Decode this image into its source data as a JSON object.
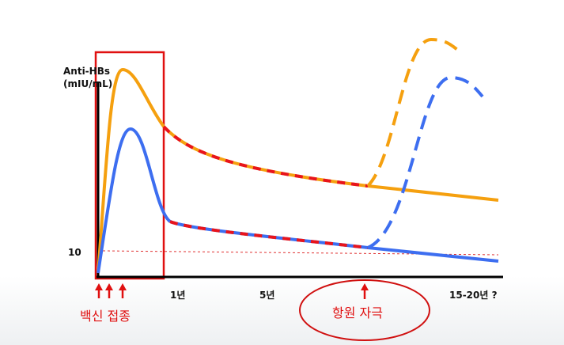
{
  "y_axis": {
    "title_line1": "Anti-HBs",
    "title_line2": "(mIU/mL)",
    "tick_10": "10"
  },
  "x_axis": {
    "ticks": [
      "1년",
      "5년",
      "15-20년 ?"
    ]
  },
  "annotations": {
    "vaccination": "백신 접종",
    "antigen_challenge": "항원 자극"
  },
  "colors": {
    "high_responder": "#f5a00f",
    "low_responder": "#3d6ef0",
    "waning": "#e8141c",
    "frame": "#e01010",
    "threshold": "#e03030"
  }
}
